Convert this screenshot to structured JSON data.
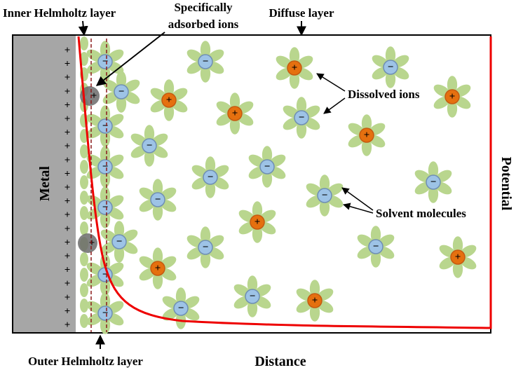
{
  "labels": {
    "inner_helmholtz": "Inner Helmholtz layer",
    "specifically_adsorbed": [
      "Specifically",
      "adsorbed ions"
    ],
    "diffuse": "Diffuse layer",
    "dissolved": "Dissolved ions",
    "solvent": "Solvent molecules",
    "metal": "Metal",
    "potential": "Potential",
    "outer_helmholtz": "Outer Helmholtz layer",
    "distance": "Distance"
  },
  "signs": {
    "positive": "+",
    "negative": "−"
  }
}
